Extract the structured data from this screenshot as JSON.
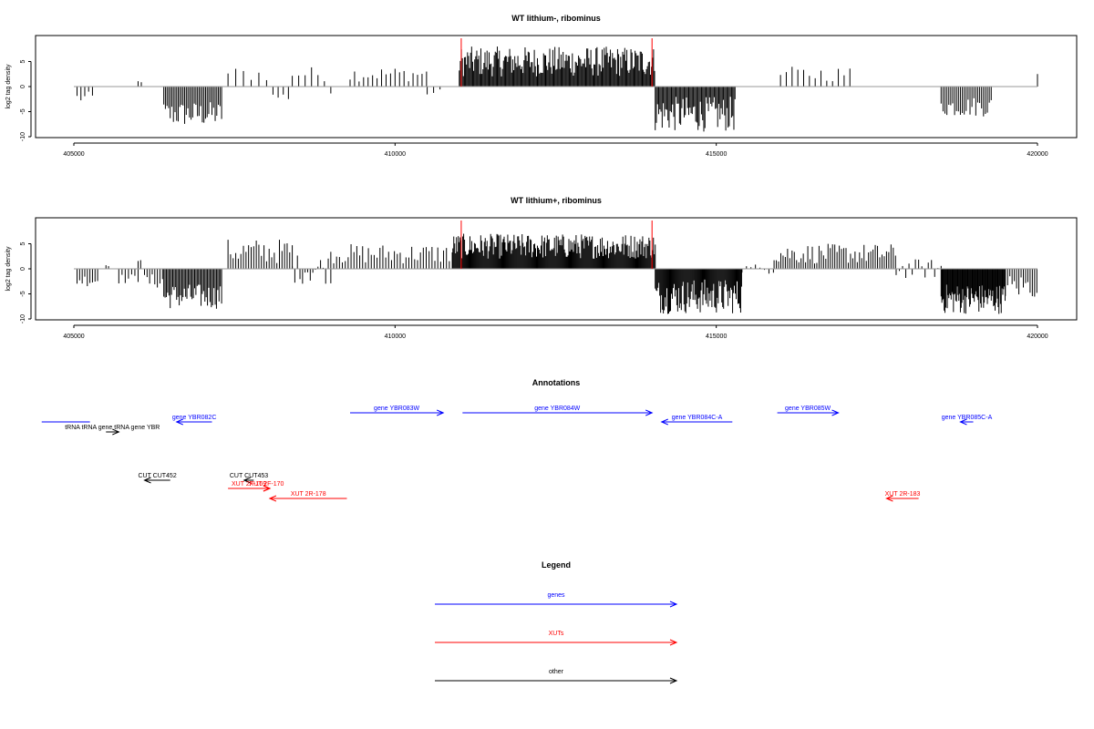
{
  "chart_data": [
    {
      "type": "bar",
      "title": "WT lithium-, ribominus",
      "xlabel": "",
      "ylabel": "log2 tag density",
      "xlim": [
        405000,
        420000
      ],
      "ylim": [
        -10,
        10
      ],
      "xticks": [
        405000,
        410000,
        415000,
        420000
      ],
      "xtick_labels": [
        "405000",
        "410000",
        "415000",
        "420000"
      ],
      "yticks": [
        -10,
        -5,
        0,
        5
      ],
      "ytick_labels": [
        "-10",
        "-5",
        "0",
        "5"
      ],
      "marker_lines": [
        411030,
        414000
      ],
      "regions": [
        {
          "start": 405050,
          "end": 405300,
          "min": -3.5,
          "max": -1,
          "step": 60
        },
        {
          "start": 406000,
          "end": 406050,
          "min": 0.8,
          "max": 1.2,
          "step": 50
        },
        {
          "start": 406400,
          "end": 407300,
          "min": -8,
          "max": -3,
          "step": 25
        },
        {
          "start": 407400,
          "end": 408100,
          "min": 1,
          "max": 4,
          "step": 120
        },
        {
          "start": 408100,
          "end": 408400,
          "min": -3,
          "max": -1,
          "step": 80
        },
        {
          "start": 408400,
          "end": 408900,
          "min": 1,
          "max": 4,
          "step": 100
        },
        {
          "start": 409000,
          "end": 409050,
          "min": -1.5,
          "max": -1,
          "step": 60
        },
        {
          "start": 409300,
          "end": 410500,
          "min": 1,
          "max": 4,
          "step": 70
        },
        {
          "start": 410500,
          "end": 410700,
          "min": -2,
          "max": -0.5,
          "step": 100
        },
        {
          "start": 411000,
          "end": 414050,
          "min": 2,
          "max": 8,
          "step": 16
        },
        {
          "start": 414050,
          "end": 415300,
          "min": -9,
          "max": -2,
          "step": 18
        },
        {
          "start": 416000,
          "end": 417100,
          "min": 1,
          "max": 4,
          "step": 90
        },
        {
          "start": 418500,
          "end": 419300,
          "min": -6,
          "max": -2,
          "step": 30
        },
        {
          "start": 420000,
          "end": 420010,
          "min": 2.5,
          "max": 2.5,
          "step": 20
        }
      ]
    },
    {
      "type": "bar",
      "title": "WT lithium+, ribominus",
      "xlabel": "",
      "ylabel": "log2 tag density",
      "xlim": [
        405000,
        420000
      ],
      "ylim": [
        -10,
        10
      ],
      "xticks": [
        405000,
        410000,
        415000,
        420000
      ],
      "xtick_labels": [
        "405000",
        "410000",
        "415000",
        "420000"
      ],
      "yticks": [
        -10,
        -5,
        0,
        5
      ],
      "ytick_labels": [
        "-10",
        "-5",
        "0",
        "5"
      ],
      "marker_lines": [
        411030,
        414000
      ],
      "regions": [
        {
          "start": 405050,
          "end": 405400,
          "min": -3.5,
          "max": -1,
          "step": 40
        },
        {
          "start": 405500,
          "end": 405550,
          "min": 0.5,
          "max": 1,
          "step": 40
        },
        {
          "start": 405700,
          "end": 406000,
          "min": -3,
          "max": -1,
          "step": 50
        },
        {
          "start": 406000,
          "end": 406050,
          "min": 1.5,
          "max": 2.5,
          "step": 40
        },
        {
          "start": 406100,
          "end": 406400,
          "min": -4,
          "max": -1,
          "step": 40
        },
        {
          "start": 406400,
          "end": 407300,
          "min": -8,
          "max": -3,
          "step": 20
        },
        {
          "start": 407400,
          "end": 408400,
          "min": 1,
          "max": 6,
          "step": 40
        },
        {
          "start": 408400,
          "end": 409000,
          "min": -3,
          "max": 3,
          "step": 40
        },
        {
          "start": 409000,
          "end": 410900,
          "min": 1,
          "max": 5,
          "step": 45
        },
        {
          "start": 410900,
          "end": 414050,
          "min": 2,
          "max": 7,
          "step": 14
        },
        {
          "start": 414050,
          "end": 415400,
          "min": -9,
          "max": -2,
          "step": 14
        },
        {
          "start": 415400,
          "end": 415900,
          "min": -1,
          "max": 1,
          "step": 70
        },
        {
          "start": 415900,
          "end": 417800,
          "min": 1,
          "max": 5,
          "step": 35
        },
        {
          "start": 417800,
          "end": 418500,
          "min": -2,
          "max": 2,
          "step": 50
        },
        {
          "start": 418500,
          "end": 419500,
          "min": -9,
          "max": -3,
          "step": 12
        },
        {
          "start": 419500,
          "end": 420000,
          "min": -6,
          "max": -1,
          "step": 35
        }
      ]
    },
    {
      "type": "annotation-track",
      "title": "Annotations",
      "xlim": [
        405000,
        420000
      ],
      "features": [
        {
          "label": "",
          "start": 404500,
          "end": 405250,
          "strand": "+",
          "row": 2,
          "cls": "gene"
        },
        {
          "label": "tRNA tRNA gene tRNA gene YBR",
          "start": 405500,
          "end": 405700,
          "strand": "+",
          "row": 3,
          "cls": "other"
        },
        {
          "label": "gene YBR082C",
          "start": 406600,
          "end": 407150,
          "strand": "-",
          "row": 2,
          "cls": "gene"
        },
        {
          "label": "gene YBR083W",
          "start": 409300,
          "end": 410750,
          "strand": "+",
          "row": 1,
          "cls": "gene"
        },
        {
          "label": "gene YBR084W",
          "start": 411050,
          "end": 414000,
          "strand": "+",
          "row": 1,
          "cls": "gene"
        },
        {
          "label": "gene YBR084C-A",
          "start": 414150,
          "end": 415250,
          "strand": "-",
          "row": 2,
          "cls": "gene"
        },
        {
          "label": "gene YBR085W",
          "start": 415950,
          "end": 416900,
          "strand": "+",
          "row": 1,
          "cls": "gene"
        },
        {
          "label": "gene YBR085C-A",
          "start": 418800,
          "end": 419000,
          "strand": "-",
          "row": 2,
          "cls": "gene"
        },
        {
          "label": "CUT CUT452",
          "start": 406100,
          "end": 406500,
          "strand": "-",
          "row": 4,
          "cls": "other"
        },
        {
          "label": "CUT CUT453",
          "start": 407650,
          "end": 407800,
          "strand": "-",
          "row": 4,
          "cls": "other"
        },
        {
          "label": "XUT 2F-169",
          "start": 407400,
          "end": 408050,
          "strand": "+",
          "row": 5,
          "cls": "xut"
        },
        {
          "label": "XUT 2F-170",
          "start": 407950,
          "end": 408050,
          "strand": "+",
          "row": 5,
          "cls": "xut"
        },
        {
          "label": "XUT 2R-178",
          "start": 408050,
          "end": 409250,
          "strand": "-",
          "row": 6,
          "cls": "xut"
        },
        {
          "label": "XUT 2R-183",
          "start": 417650,
          "end": 418150,
          "strand": "-",
          "row": 6,
          "cls": "xut"
        }
      ]
    }
  ],
  "legend": {
    "title": "Legend",
    "items": [
      {
        "label": "genes",
        "color": "#0000ff"
      },
      {
        "label": "XUTs",
        "color": "#ff0000"
      },
      {
        "label": "other",
        "color": "#000000"
      }
    ]
  },
  "colors": {
    "gene": "#0000ff",
    "xut": "#ff0000",
    "other": "#000000",
    "marker": "#ff0000",
    "baseline": "#9a9a9a"
  }
}
